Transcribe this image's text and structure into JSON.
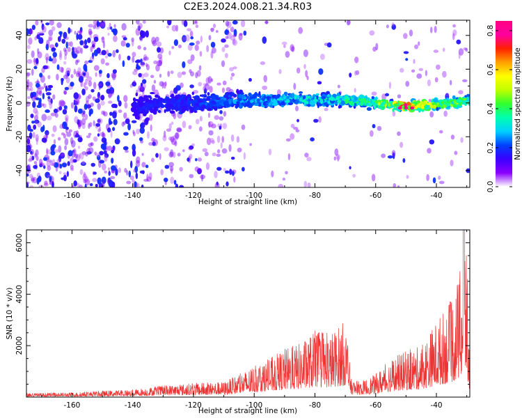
{
  "title": "C2E3.2024.008.21.34.R03",
  "chart_data": [
    {
      "type": "heatmap",
      "xlabel": "Height of straight line (km)",
      "ylabel": "Frequency (Hz)",
      "xlim": [
        -175,
        -29
      ],
      "ylim": [
        -50,
        49
      ],
      "xticks": [
        -160,
        -140,
        -120,
        -100,
        -80,
        -60,
        -40
      ],
      "yticks": [
        -40,
        -20,
        0,
        20,
        40
      ],
      "grid": false,
      "colorbar": {
        "label": "Normalized spectral amplitude",
        "range": [
          0,
          0.85
        ],
        "ticks": [
          0.0,
          0.2,
          0.4,
          0.6,
          0.8
        ],
        "colormap": [
          "#ffffff",
          "#8a00ff",
          "#3a00ff",
          "#0040ff",
          "#00d0ff",
          "#00ffb0",
          "#30ff30",
          "#c0ff00",
          "#ffff00",
          "#ffa000",
          "#ff2000",
          "#ff00a0",
          "#ff0080"
        ]
      },
      "band": {
        "x": [
          -140,
          -130,
          -120,
          -110,
          -100,
          -90,
          -80,
          -70,
          -60,
          -50,
          -40,
          -30
        ],
        "center": [
          -2,
          -1,
          0,
          1,
          1,
          2,
          2,
          2,
          0,
          -2,
          -1,
          1
        ],
        "halfwidth": [
          8,
          8,
          7,
          7,
          6,
          5,
          5,
          5,
          4,
          4,
          4,
          4
        ],
        "peak_amplitude": [
          0.18,
          0.2,
          0.22,
          0.26,
          0.3,
          0.34,
          0.38,
          0.42,
          0.5,
          0.84,
          0.55,
          0.5
        ]
      }
    },
    {
      "type": "line",
      "xlabel": "Height of straight line (km)",
      "ylabel": "SNR (10 * v/v)",
      "xlim": [
        -175,
        -29
      ],
      "ylim": [
        0,
        6500
      ],
      "xticks": [
        -160,
        -140,
        -120,
        -100,
        -80,
        -60,
        -40
      ],
      "yticks": [
        2000,
        4000,
        6000
      ],
      "grid": false,
      "series": [
        {
          "color": "#ee3333",
          "envelope_x": [
            -175,
            -160,
            -140,
            -130,
            -120,
            -110,
            -100,
            -95,
            -90,
            -85,
            -80,
            -75,
            -70,
            -68,
            -65,
            -60,
            -55,
            -50,
            -45,
            -40,
            -35,
            -32,
            -31,
            -30,
            -29
          ],
          "envelope_max": [
            150,
            180,
            300,
            450,
            550,
            600,
            1200,
            1500,
            1900,
            2100,
            2600,
            2500,
            3000,
            700,
            600,
            900,
            1500,
            1800,
            2000,
            3000,
            3800,
            5000,
            6600,
            6000,
            700
          ]
        }
      ]
    }
  ]
}
